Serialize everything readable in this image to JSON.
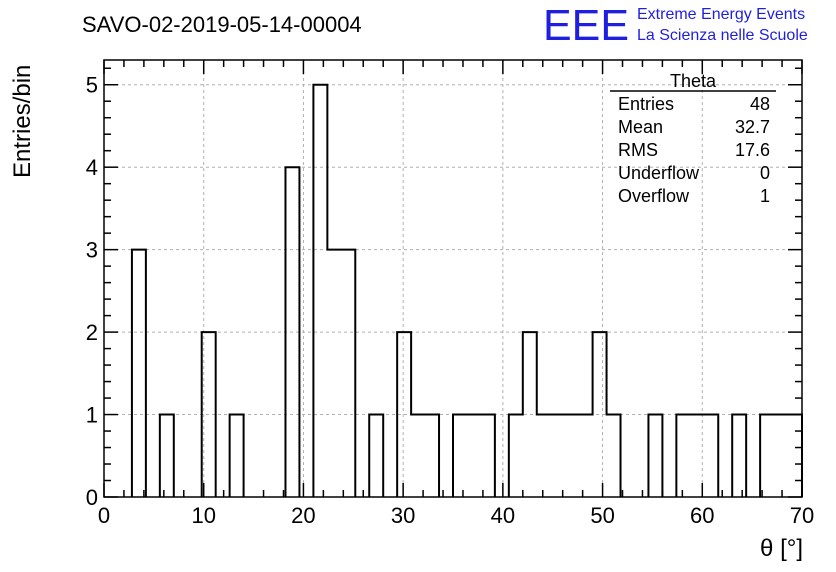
{
  "chart_data": {
    "type": "bar",
    "title": "SAVO-02-2019-05-14-00004",
    "xlabel": "θ [°]",
    "ylabel": "Entries/bin",
    "xlim": [
      0,
      70
    ],
    "ylim": [
      0,
      5.3
    ],
    "grid": true,
    "bin_width": 1.4,
    "bins": [
      {
        "x0": 2.8,
        "value": 3
      },
      {
        "x0": 5.6,
        "value": 1
      },
      {
        "x0": 9.8,
        "value": 2
      },
      {
        "x0": 12.6,
        "value": 1
      },
      {
        "x0": 18.2,
        "value": 4
      },
      {
        "x0": 21.0,
        "value": 5
      },
      {
        "x0": 22.4,
        "value": 3
      },
      {
        "x0": 23.8,
        "value": 3
      },
      {
        "x0": 26.6,
        "value": 1
      },
      {
        "x0": 29.4,
        "value": 2
      },
      {
        "x0": 30.8,
        "value": 1
      },
      {
        "x0": 32.2,
        "value": 1
      },
      {
        "x0": 35.0,
        "value": 1
      },
      {
        "x0": 36.4,
        "value": 1
      },
      {
        "x0": 37.8,
        "value": 1
      },
      {
        "x0": 40.6,
        "value": 1
      },
      {
        "x0": 42.0,
        "value": 2
      },
      {
        "x0": 43.4,
        "value": 1
      },
      {
        "x0": 44.8,
        "value": 1
      },
      {
        "x0": 46.2,
        "value": 1
      },
      {
        "x0": 47.6,
        "value": 1
      },
      {
        "x0": 49.0,
        "value": 2
      },
      {
        "x0": 50.4,
        "value": 1
      },
      {
        "x0": 54.6,
        "value": 1
      },
      {
        "x0": 57.4,
        "value": 1
      },
      {
        "x0": 58.8,
        "value": 1
      },
      {
        "x0": 60.2,
        "value": 1
      },
      {
        "x0": 63.0,
        "value": 1
      },
      {
        "x0": 65.8,
        "value": 1
      },
      {
        "x0": 67.2,
        "value": 1
      },
      {
        "x0": 68.6,
        "value": 1
      }
    ],
    "x_ticks": [
      "0",
      "10",
      "20",
      "30",
      "40",
      "50",
      "60",
      "70"
    ],
    "y_ticks": [
      "0",
      "1",
      "2",
      "3",
      "4",
      "5"
    ],
    "stats": {
      "name": "Theta",
      "rows": [
        {
          "label": "Entries",
          "value": "48"
        },
        {
          "label": "Mean",
          "value": "32.7"
        },
        {
          "label": "RMS",
          "value": "17.6"
        },
        {
          "label": "Underflow",
          "value": "0"
        },
        {
          "label": "Overflow",
          "value": "1"
        }
      ]
    }
  },
  "logo": {
    "mark": "EEE",
    "line1": "Extreme Energy Events",
    "line2": "La Scienza nelle Scuole",
    "color": "#1f1fe0"
  }
}
